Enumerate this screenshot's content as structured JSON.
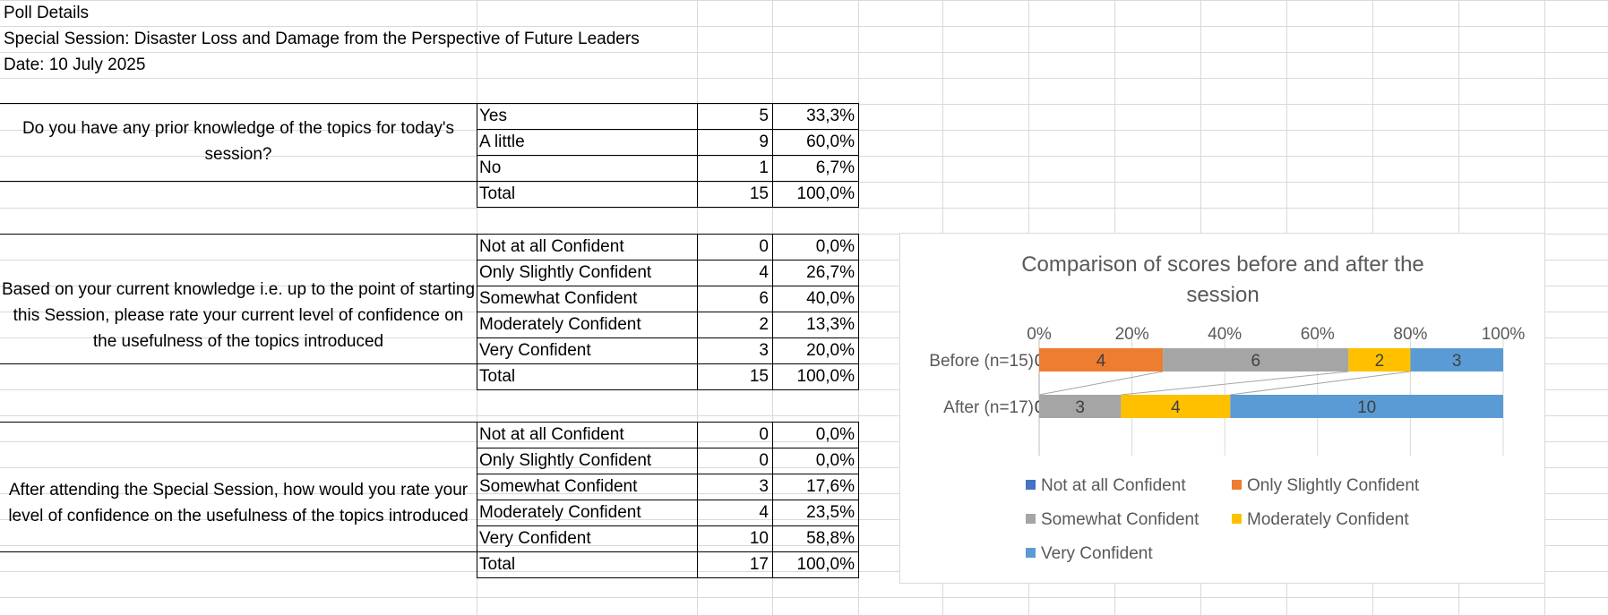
{
  "header": {
    "title": "Poll Details",
    "session": "Special Session: Disaster Loss and Damage from the Perspective of Future Leaders",
    "date": "Date: 10 July 2025"
  },
  "table1": {
    "question": "Do you have any prior knowledge of the topics for today's session?",
    "rows": [
      {
        "label": "Yes",
        "count": "5",
        "pct": "33,3%"
      },
      {
        "label": "A little",
        "count": "9",
        "pct": "60,0%"
      },
      {
        "label": "No",
        "count": "1",
        "pct": "6,7%"
      },
      {
        "label": "Total",
        "count": "15",
        "pct": "100,0%"
      }
    ]
  },
  "table2": {
    "question": "Based on your current knowledge i.e. up to the point of starting this Session, please rate your current level of confidence on the usefulness of the topics introduced",
    "rows": [
      {
        "label": "Not at all Confident",
        "count": "0",
        "pct": "0,0%"
      },
      {
        "label": "Only Slightly Confident",
        "count": "4",
        "pct": "26,7%"
      },
      {
        "label": "Somewhat Confident",
        "count": "6",
        "pct": "40,0%"
      },
      {
        "label": "Moderately Confident",
        "count": "2",
        "pct": "13,3%"
      },
      {
        "label": "Very Confident",
        "count": "3",
        "pct": "20,0%"
      },
      {
        "label": "Total",
        "count": "15",
        "pct": "100,0%"
      }
    ]
  },
  "table3": {
    "question": "After attending the Special Session, how would you rate your level of confidence on the usefulness of the topics introduced",
    "rows": [
      {
        "label": "Not at all Confident",
        "count": "0",
        "pct": "0,0%"
      },
      {
        "label": "Only Slightly Confident",
        "count": "0",
        "pct": "0,0%"
      },
      {
        "label": "Somewhat Confident",
        "count": "3",
        "pct": "17,6%"
      },
      {
        "label": "Moderately Confident",
        "count": "4",
        "pct": "23,5%"
      },
      {
        "label": "Very Confident",
        "count": "10",
        "pct": "58,8%"
      },
      {
        "label": "Total",
        "count": "17",
        "pct": "100,0%"
      }
    ]
  },
  "chart_data": {
    "type": "bar",
    "orientation": "horizontal",
    "stacking": "percent",
    "title": "Comparison of scores before and after the session",
    "categories": [
      "Before (n=15)",
      "After (n=17)"
    ],
    "x_ticks": [
      "0%",
      "20%",
      "40%",
      "60%",
      "80%",
      "100%"
    ],
    "xlim": [
      0,
      100
    ],
    "x_axis_position": "top",
    "grid": true,
    "series_lines": true,
    "legend_position": "bottom",
    "series": [
      {
        "name": "Not at all Confident",
        "color": "#4472C4",
        "values": [
          0,
          0
        ]
      },
      {
        "name": "Only Slightly Confident",
        "color": "#ED7D31",
        "values": [
          4,
          0
        ]
      },
      {
        "name": "Somewhat Confident",
        "color": "#A5A5A5",
        "values": [
          6,
          3
        ]
      },
      {
        "name": "Moderately Confident",
        "color": "#FFC000",
        "values": [
          2,
          4
        ]
      },
      {
        "name": "Very Confident",
        "color": "#5B9BD5",
        "values": [
          3,
          10
        ]
      }
    ]
  }
}
